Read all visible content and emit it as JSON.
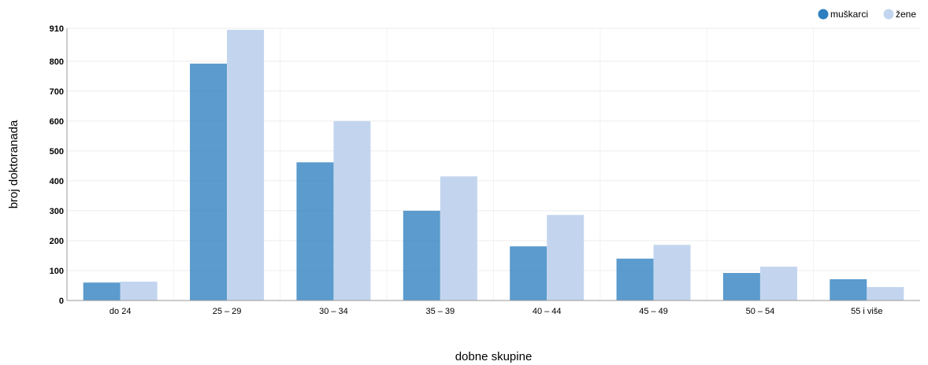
{
  "chart_data": {
    "type": "bar",
    "title": "",
    "xlabel": "dobne skupine",
    "ylabel": "broj doktoranada",
    "categories": [
      "do 24",
      "25 – 29",
      "30 – 34",
      "35 – 39",
      "40 – 44",
      "45 – 49",
      "50 – 54",
      "55 i više"
    ],
    "series": [
      {
        "name": "muškarci",
        "color": "#2d7fbf",
        "values": [
          60,
          792,
          462,
          300,
          181,
          140,
          92,
          71
        ]
      },
      {
        "name": "žene",
        "color": "#c3d5ee",
        "values": [
          63,
          905,
          600,
          415,
          286,
          186,
          113,
          45
        ]
      }
    ],
    "ylim": [
      0,
      910
    ],
    "yticks": [
      0,
      100,
      200,
      300,
      400,
      500,
      600,
      700,
      800,
      910
    ],
    "grid": true,
    "legend_position": "top-right"
  }
}
